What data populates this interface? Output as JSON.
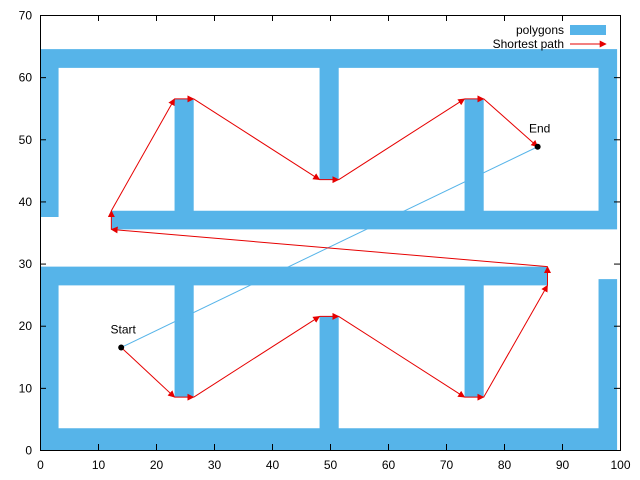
{
  "chart_data": {
    "type": "polygon-path",
    "title": "",
    "xlabel": "",
    "ylabel": "",
    "xlim": [
      0,
      100
    ],
    "ylim": [
      0,
      70
    ],
    "xticks": [
      0,
      10,
      20,
      30,
      40,
      50,
      60,
      70,
      80,
      90,
      100
    ],
    "yticks": [
      0,
      10,
      20,
      30,
      40,
      50,
      60,
      70
    ],
    "grid": false,
    "legend_position": "top-right",
    "legend": [
      {
        "label": "polygons",
        "color": "#56b4e9",
        "style": "box"
      },
      {
        "label": "Shortest path",
        "color": "#e60000",
        "style": "arrow"
      }
    ],
    "polygons": [
      [
        [
          0,
          37.5
        ],
        [
          0,
          64.5
        ],
        [
          99.5,
          64.5
        ],
        [
          99.5,
          35.5
        ],
        [
          12.3,
          35.5
        ],
        [
          12.3,
          38.5
        ],
        [
          23.2,
          38.5
        ],
        [
          23.2,
          56.5
        ],
        [
          26.5,
          56.5
        ],
        [
          26.5,
          38.5
        ],
        [
          73.2,
          38.5
        ],
        [
          73.2,
          56.5
        ],
        [
          76.5,
          56.5
        ],
        [
          76.5,
          38.5
        ],
        [
          96.3,
          38.5
        ],
        [
          96.3,
          61.5
        ],
        [
          51.5,
          61.5
        ],
        [
          51.5,
          43.5
        ],
        [
          48.2,
          43.5
        ],
        [
          48.2,
          61.5
        ],
        [
          3.2,
          61.5
        ],
        [
          3.2,
          37.5
        ]
      ],
      [
        [
          0,
          29.5
        ],
        [
          0,
          0
        ],
        [
          99.5,
          0
        ],
        [
          99.5,
          27.5
        ],
        [
          96.3,
          27.5
        ],
        [
          96.3,
          3.5
        ],
        [
          51.5,
          3.5
        ],
        [
          51.5,
          21.5
        ],
        [
          48.2,
          21.5
        ],
        [
          48.2,
          3.5
        ],
        [
          3.2,
          3.5
        ],
        [
          3.2,
          26.5
        ],
        [
          23.2,
          26.5
        ],
        [
          23.2,
          8.5
        ],
        [
          26.5,
          8.5
        ],
        [
          26.5,
          26.5
        ],
        [
          73.2,
          26.5
        ],
        [
          73.2,
          8.5
        ],
        [
          76.5,
          8.5
        ],
        [
          76.5,
          26.5
        ],
        [
          87.5,
          26.5
        ],
        [
          87.5,
          29.5
        ]
      ]
    ],
    "shortest_path": [
      [
        14,
        16.5
      ],
      [
        23.2,
        8.5
      ],
      [
        26.5,
        8.5
      ],
      [
        48.2,
        21.5
      ],
      [
        51.5,
        21.5
      ],
      [
        73.2,
        8.5
      ],
      [
        76.5,
        8.5
      ],
      [
        87.5,
        26.5
      ],
      [
        87.5,
        29.5
      ],
      [
        12.3,
        35.5
      ],
      [
        12.3,
        38.5
      ],
      [
        23.2,
        56.5
      ],
      [
        26.5,
        56.5
      ],
      [
        48.2,
        43.5
      ],
      [
        51.5,
        43.5
      ],
      [
        73.2,
        56.5
      ],
      [
        76.5,
        56.5
      ],
      [
        85.8,
        48.8
      ]
    ],
    "direct_line": [
      [
        14,
        16.5
      ],
      [
        85.8,
        48.8
      ]
    ],
    "direct_line_color": "#56b4e9",
    "points": [
      {
        "label": "Start",
        "x": 14,
        "y": 16.5
      },
      {
        "label": "End",
        "x": 85.8,
        "y": 48.8
      }
    ]
  }
}
